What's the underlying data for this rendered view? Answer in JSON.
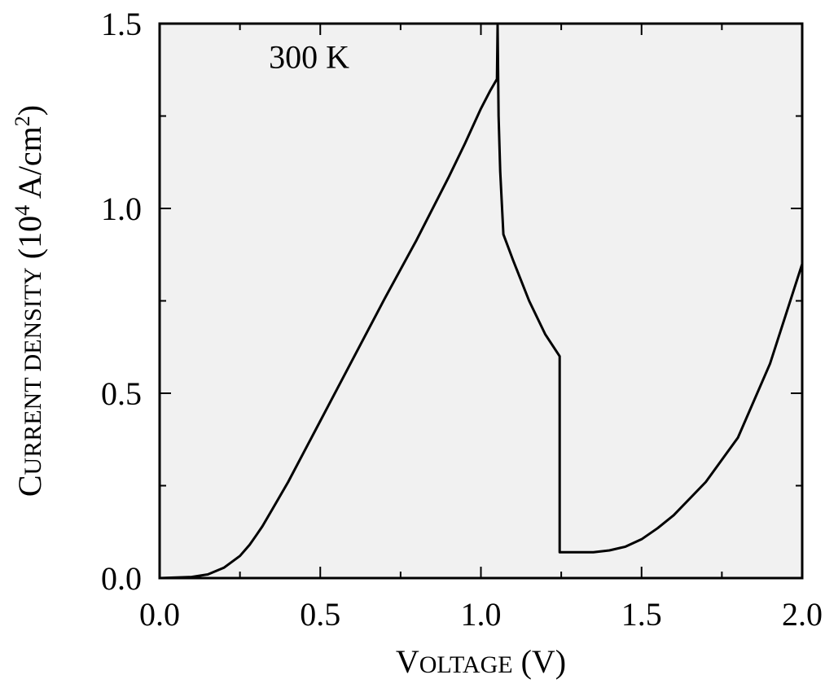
{
  "chart_data": {
    "type": "line",
    "annotation": "300 K",
    "xlabel": {
      "first": "V",
      "rest": "OLTAGE",
      "unit": " (V)"
    },
    "ylabel": {
      "first": "C",
      "rest": "URRENT DENSITY",
      "unit_pre": " (10",
      "unit_sup": "4",
      "unit_mid": " A/cm",
      "unit_sup2": "2",
      "unit_post": ")"
    },
    "xlim": [
      0.0,
      2.0
    ],
    "ylim": [
      0.0,
      1.5
    ],
    "x_ticks": [
      "0.0",
      "0.5",
      "1.0",
      "1.5",
      "2.0"
    ],
    "y_ticks": [
      "0.0",
      "0.5",
      "1.0",
      "1.5"
    ],
    "grid": false,
    "plot_background": "#f1f1f1",
    "line_color": "#000000",
    "series": [
      {
        "x": [
          0.0,
          0.1,
          0.15,
          0.2,
          0.25,
          0.28,
          0.3,
          0.32,
          0.35,
          0.4,
          0.5,
          0.6,
          0.7,
          0.8,
          0.9,
          0.95,
          1.0,
          1.03,
          1.05,
          1.052,
          1.055,
          1.06,
          1.07,
          1.1,
          1.15,
          1.2,
          1.245,
          1.245,
          1.3,
          1.35,
          1.4,
          1.45,
          1.5,
          1.55,
          1.6,
          1.7,
          1.8,
          1.9,
          2.0
        ],
        "y": [
          0.0,
          0.003,
          0.01,
          0.028,
          0.06,
          0.09,
          0.115,
          0.14,
          0.185,
          0.26,
          0.425,
          0.59,
          0.755,
          0.915,
          1.085,
          1.175,
          1.27,
          1.32,
          1.35,
          1.495,
          1.25,
          1.1,
          0.93,
          0.86,
          0.75,
          0.66,
          0.6,
          0.07,
          0.07,
          0.07,
          0.075,
          0.085,
          0.105,
          0.135,
          0.17,
          0.26,
          0.38,
          0.58,
          0.85
        ]
      }
    ]
  }
}
